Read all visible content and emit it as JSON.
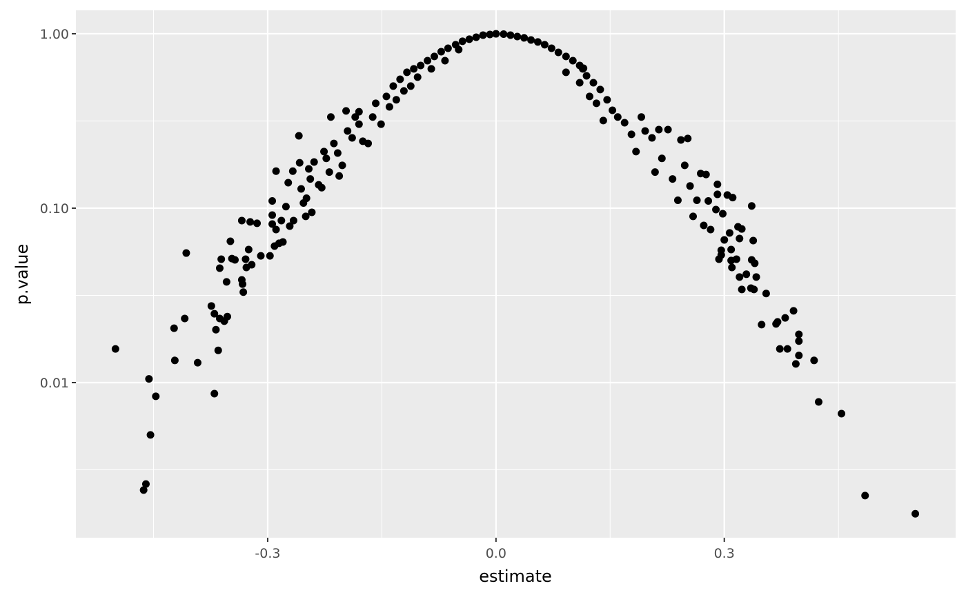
{
  "chart_data": {
    "type": "scatter",
    "x_label": "estimate",
    "y_label": "p.value",
    "xlim": [
      -0.552,
      0.604
    ],
    "ylim": [
      0.00129,
      1.362
    ],
    "ylog": true,
    "grid": true,
    "color": "#000000",
    "xticks": [
      -0.3,
      {
        "value": 0,
        "label": "0.0"
      },
      0.3
    ],
    "yticks": [
      {
        "value": 0.01,
        "label": "0.01"
      },
      {
        "value": 0.1,
        "label": "0.10"
      },
      {
        "value": 1,
        "label": "1.00"
      }
    ],
    "x": [
      -0.5,
      -0.456,
      -0.447,
      -0.454,
      -0.46,
      -0.463,
      -0.423,
      -0.422,
      -0.409,
      -0.407,
      -0.392,
      -0.374,
      -0.37,
      -0.368,
      -0.365,
      -0.37,
      -0.363,
      -0.357,
      -0.353,
      -0.363,
      -0.361,
      -0.354,
      -0.349,
      -0.347,
      -0.343,
      -0.334,
      -0.334,
      -0.333,
      -0.332,
      -0.329,
      -0.328,
      -0.325,
      -0.323,
      -0.321,
      -0.314,
      -0.309,
      -0.297,
      -0.294,
      -0.289,
      -0.291,
      -0.285,
      -0.28,
      -0.294,
      -0.294,
      -0.289,
      -0.282,
      -0.276,
      -0.273,
      -0.271,
      -0.267,
      -0.266,
      -0.259,
      -0.258,
      -0.256,
      -0.253,
      -0.25,
      -0.246,
      -0.242,
      -0.249,
      -0.244,
      -0.239,
      -0.233,
      -0.229,
      -0.226,
      -0.223,
      -0.217,
      -0.219,
      -0.213,
      -0.208,
      -0.206,
      -0.202,
      -0.197,
      -0.195,
      -0.189,
      -0.185,
      -0.18,
      -0.175,
      -0.168,
      -0.18,
      -0.162,
      -0.158,
      -0.151,
      -0.144,
      -0.135,
      -0.126,
      -0.117,
      -0.108,
      -0.099,
      -0.09,
      -0.081,
      -0.072,
      -0.063,
      -0.053,
      -0.044,
      -0.035,
      -0.026,
      -0.017,
      -0.008,
      0.0,
      -0.14,
      -0.131,
      -0.121,
      -0.112,
      -0.103,
      -0.085,
      -0.067,
      -0.049,
      0.551,
      0.485,
      0.454,
      0.424,
      0.418,
      0.398,
      0.398,
      0.398,
      0.391,
      0.394,
      0.38,
      0.373,
      0.383,
      0.368,
      0.37,
      0.349,
      0.355,
      0.342,
      0.34,
      0.336,
      0.338,
      0.336,
      0.339,
      0.335,
      0.329,
      0.323,
      0.32,
      0.316,
      0.32,
      0.318,
      0.323,
      0.311,
      0.31,
      0.309,
      0.304,
      0.309,
      0.307,
      0.3,
      0.296,
      0.293,
      0.296,
      0.298,
      0.291,
      0.289,
      0.291,
      0.282,
      0.276,
      0.279,
      0.273,
      0.269,
      0.264,
      0.259,
      0.255,
      0.252,
      0.243,
      0.248,
      0.239,
      0.226,
      0.232,
      0.218,
      0.214,
      0.209,
      0.205,
      0.196,
      0.191,
      0.184,
      0.178,
      0.169,
      0.16,
      0.153,
      0.146,
      0.137,
      0.128,
      0.119,
      0.114,
      0.11,
      0.101,
      0.092,
      0.082,
      0.073,
      0.064,
      0.055,
      0.046,
      0.037,
      0.028,
      0.019,
      0.01,
      0.115,
      0.141,
      0.132,
      0.123,
      0.11,
      0.092
    ],
    "y": [
      0.0156,
      0.0105,
      0.00834,
      0.00501,
      0.00262,
      0.00242,
      0.0205,
      0.0134,
      0.0233,
      0.0553,
      0.013,
      0.0275,
      0.0248,
      0.0201,
      0.0153,
      0.00864,
      0.0233,
      0.0225,
      0.0239,
      0.0453,
      0.051,
      0.0378,
      0.0646,
      0.0514,
      0.0505,
      0.0849,
      0.0388,
      0.0367,
      0.033,
      0.051,
      0.0457,
      0.0579,
      0.0834,
      0.0474,
      0.0819,
      0.0533,
      0.0533,
      0.11,
      0.163,
      0.0606,
      0.0629,
      0.064,
      0.0913,
      0.0811,
      0.0754,
      0.0849,
      0.102,
      0.14,
      0.0789,
      0.163,
      0.0849,
      0.26,
      0.182,
      0.129,
      0.107,
      0.0897,
      0.168,
      0.0947,
      0.114,
      0.147,
      0.184,
      0.136,
      0.131,
      0.211,
      0.193,
      0.333,
      0.161,
      0.235,
      0.207,
      0.153,
      0.176,
      0.361,
      0.277,
      0.253,
      0.333,
      0.303,
      0.242,
      0.235,
      0.357,
      0.333,
      0.399,
      0.303,
      0.437,
      0.501,
      0.548,
      0.601,
      0.629,
      0.658,
      0.701,
      0.741,
      0.789,
      0.826,
      0.865,
      0.905,
      0.93,
      0.955,
      0.982,
      0.991,
      0.999,
      0.381,
      0.418,
      0.47,
      0.501,
      0.564,
      0.629,
      0.701,
      0.811,
      0.00177,
      0.00225,
      0.00664,
      0.00775,
      0.0134,
      0.0189,
      0.0173,
      0.0143,
      0.0258,
      0.0128,
      0.0235,
      0.0156,
      0.0156,
      0.0217,
      0.0223,
      0.0215,
      0.0324,
      0.0403,
      0.0483,
      0.0505,
      0.0652,
      0.103,
      0.0342,
      0.0348,
      0.0418,
      0.0342,
      0.0403,
      0.051,
      0.067,
      0.0782,
      0.076,
      0.115,
      0.0457,
      0.0579,
      0.119,
      0.0501,
      0.0721,
      0.0658,
      0.0539,
      0.051,
      0.0574,
      0.0929,
      0.137,
      0.0982,
      0.12,
      0.0754,
      0.156,
      0.11,
      0.0796,
      0.158,
      0.111,
      0.0897,
      0.134,
      0.251,
      0.246,
      0.176,
      0.111,
      0.282,
      0.147,
      0.193,
      0.282,
      0.161,
      0.253,
      0.277,
      0.333,
      0.211,
      0.265,
      0.309,
      0.333,
      0.364,
      0.418,
      0.479,
      0.524,
      0.574,
      0.629,
      0.658,
      0.701,
      0.741,
      0.782,
      0.826,
      0.865,
      0.897,
      0.921,
      0.947,
      0.964,
      0.982,
      0.995,
      0.634,
      0.318,
      0.399,
      0.437,
      0.524,
      0.601
    ]
  }
}
